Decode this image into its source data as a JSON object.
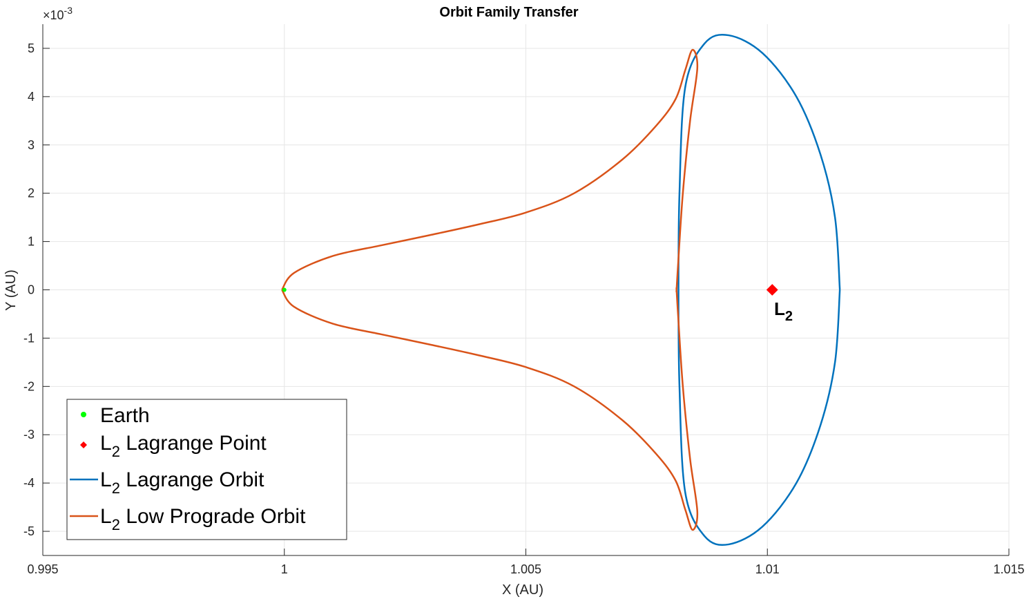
{
  "chart_data": {
    "type": "line",
    "title": "Orbit Family Transfer",
    "xlabel": "X (AU)",
    "ylabel": "Y (AU)",
    "y_exponent_label": "×10",
    "y_exponent_power": "-3",
    "y_scale": 0.001,
    "xlim": [
      0.995,
      1.015
    ],
    "ylim": [
      -5.5,
      5.5
    ],
    "x_ticks": [
      0.995,
      1,
      1.005,
      1.01,
      1.015
    ],
    "x_tick_labels": [
      "0.995",
      "1",
      "1.005",
      "1.01",
      "1.015"
    ],
    "y_ticks": [
      5,
      4,
      3,
      2,
      1,
      0,
      -1,
      -2,
      -3,
      -4,
      -5
    ],
    "y_tick_labels": [
      "5",
      "4",
      "3",
      "2",
      "1",
      "0",
      "-1",
      "-2",
      "-3",
      "-4",
      "-5"
    ],
    "grid": true,
    "legend_position": "bottom-left",
    "points": [
      {
        "name": "Earth",
        "x": 1.0,
        "y": 0.0,
        "color": "#00ff00",
        "marker": "dot"
      },
      {
        "name": "L2 Lagrange Point",
        "x": 1.0101,
        "y": 0.0,
        "color": "#ff0000",
        "marker": "diamond"
      }
    ],
    "annotation": {
      "main": "L",
      "sub": "2",
      "x": 1.0101,
      "y": 0.0
    },
    "series": [
      {
        "name": "L2 Lagrange Orbit",
        "color": "#0072bd",
        "x": [
          1.0115,
          1.0114,
          1.0111,
          1.0106,
          1.0099,
          1.0092,
          1.0087,
          1.0083,
          1.00818,
          1.00816,
          1.00818,
          1.0083,
          1.0087,
          1.0092,
          1.0099,
          1.0106,
          1.0111,
          1.0114,
          1.0115
        ],
        "y": [
          0.0,
          1.5,
          2.8,
          4.0,
          4.9,
          5.27,
          5.1,
          4.2,
          2.0,
          0.0,
          -2.0,
          -4.2,
          -5.1,
          -5.27,
          -4.9,
          -4.0,
          -2.8,
          -1.5,
          0.0
        ]
      },
      {
        "name": "L2 Low Prograde Orbit",
        "color": "#d95319",
        "x": [
          0.99995,
          1.0002,
          1.001,
          1.002,
          1.003,
          1.004,
          1.005,
          1.006,
          1.007,
          1.0077,
          1.0081,
          1.0083,
          1.00845,
          1.00855,
          1.0084,
          1.00825,
          1.00815,
          1.00812,
          1.00812,
          1.00812,
          1.00815,
          1.00825,
          1.0084,
          1.00855,
          1.00845,
          1.0083,
          1.0081,
          1.0077,
          1.007,
          1.006,
          1.005,
          1.004,
          1.003,
          1.002,
          1.001,
          1.0002,
          0.99995
        ],
        "y": [
          0.0,
          0.35,
          0.7,
          0.92,
          1.13,
          1.35,
          1.6,
          2.0,
          2.7,
          3.4,
          3.95,
          4.55,
          4.97,
          4.6,
          3.5,
          2.0,
          0.5,
          0.0,
          0.0,
          0.0,
          -0.5,
          -2.0,
          -3.5,
          -4.6,
          -4.97,
          -4.55,
          -3.95,
          -3.4,
          -2.7,
          -2.0,
          -1.6,
          -1.35,
          -1.13,
          -0.92,
          -0.7,
          -0.35,
          0.0
        ]
      }
    ],
    "legend": [
      {
        "main": "Earth",
        "sub": "",
        "rest": "",
        "kind": "dot",
        "color": "#00ff00"
      },
      {
        "main": "L",
        "sub": "2",
        "rest": " Lagrange Point",
        "kind": "diamond",
        "color": "#ff0000"
      },
      {
        "main": "L",
        "sub": "2",
        "rest": " Lagrange Orbit",
        "kind": "line",
        "color": "#0072bd"
      },
      {
        "main": "L",
        "sub": "2",
        "rest": " Low Prograde Orbit",
        "kind": "line",
        "color": "#d95319"
      }
    ]
  }
}
